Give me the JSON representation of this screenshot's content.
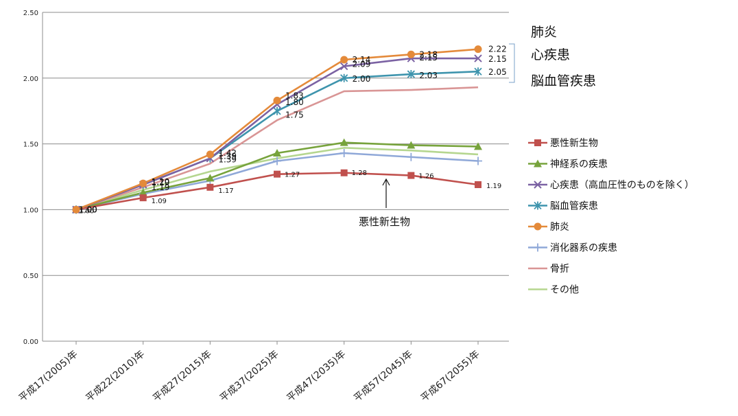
{
  "chart_data": {
    "type": "line",
    "categories": [
      "平成17(2005)年",
      "平成22(2010)年",
      "平成27(2015)年",
      "平成37(2025)年",
      "平成47(2035)年",
      "平成57(2045)年",
      "平成67(2055)年"
    ],
    "ylim": [
      0,
      2.5
    ],
    "yticks": [
      "0.00",
      "0.50",
      "1.00",
      "1.50",
      "2.00",
      "2.50"
    ],
    "ytick_values": [
      0,
      0.5,
      1.0,
      1.5,
      2.0,
      2.5
    ],
    "grid": true,
    "legend_position": "right",
    "series": [
      {
        "name": "悪性新生物",
        "color": "#c0504d",
        "marker": "square",
        "values": [
          1.0,
          1.09,
          1.17,
          1.27,
          1.28,
          1.26,
          1.19
        ],
        "labels": [
          "1.00",
          "1.09",
          "1.17",
          "1.27",
          "1.28",
          "1.26",
          "1.19"
        ]
      },
      {
        "name": "神経系の疾患",
        "color": "#77a33c",
        "marker": "triangle",
        "values": [
          1.0,
          1.13,
          1.24,
          1.43,
          1.51,
          1.49,
          1.48
        ],
        "labels": []
      },
      {
        "name": "心疾患（高血圧性のものを除く）",
        "color": "#7b62a3",
        "marker": "x",
        "values": [
          1.0,
          1.19,
          1.39,
          1.8,
          2.09,
          2.15,
          2.15
        ],
        "labels": [
          "1.00",
          "1.19",
          "1.39",
          "1.80",
          "2.09",
          "2.15",
          "2.15"
        ]
      },
      {
        "name": "脳血管疾患",
        "color": "#3e94ad",
        "marker": "asterisk",
        "values": [
          1.0,
          1.19,
          1.39,
          1.75,
          2.0,
          2.03,
          2.05
        ],
        "labels": [
          "1.00",
          "1.19",
          "1.39",
          "1.75",
          "2.00",
          "2.03",
          "2.05"
        ]
      },
      {
        "name": "肺炎",
        "color": "#e48a3a",
        "marker": "circle",
        "values": [
          1.0,
          1.2,
          1.42,
          1.83,
          2.14,
          2.18,
          2.22
        ],
        "labels": [
          "1.00",
          "1.20",
          "1.42",
          "1.83",
          "2.14",
          "2.18",
          "2.22"
        ]
      },
      {
        "name": "消化器系の疾患",
        "color": "#8fa8d8",
        "marker": "plus",
        "values": [
          1.0,
          1.12,
          1.22,
          1.37,
          1.43,
          1.4,
          1.37
        ],
        "labels": []
      },
      {
        "name": "骨折",
        "color": "#d99595",
        "marker": "none",
        "values": [
          1.0,
          1.17,
          1.35,
          1.68,
          1.9,
          1.91,
          1.93
        ],
        "labels": []
      },
      {
        "name": "その他",
        "color": "#b5d68f",
        "marker": "none",
        "values": [
          1.0,
          1.15,
          1.29,
          1.39,
          1.47,
          1.45,
          1.42
        ],
        "labels": []
      }
    ],
    "annotations": {
      "group_labels": [
        "肺炎",
        "心疾患",
        "脳血管疾患"
      ],
      "arrow_label": "悪性新生物"
    }
  }
}
